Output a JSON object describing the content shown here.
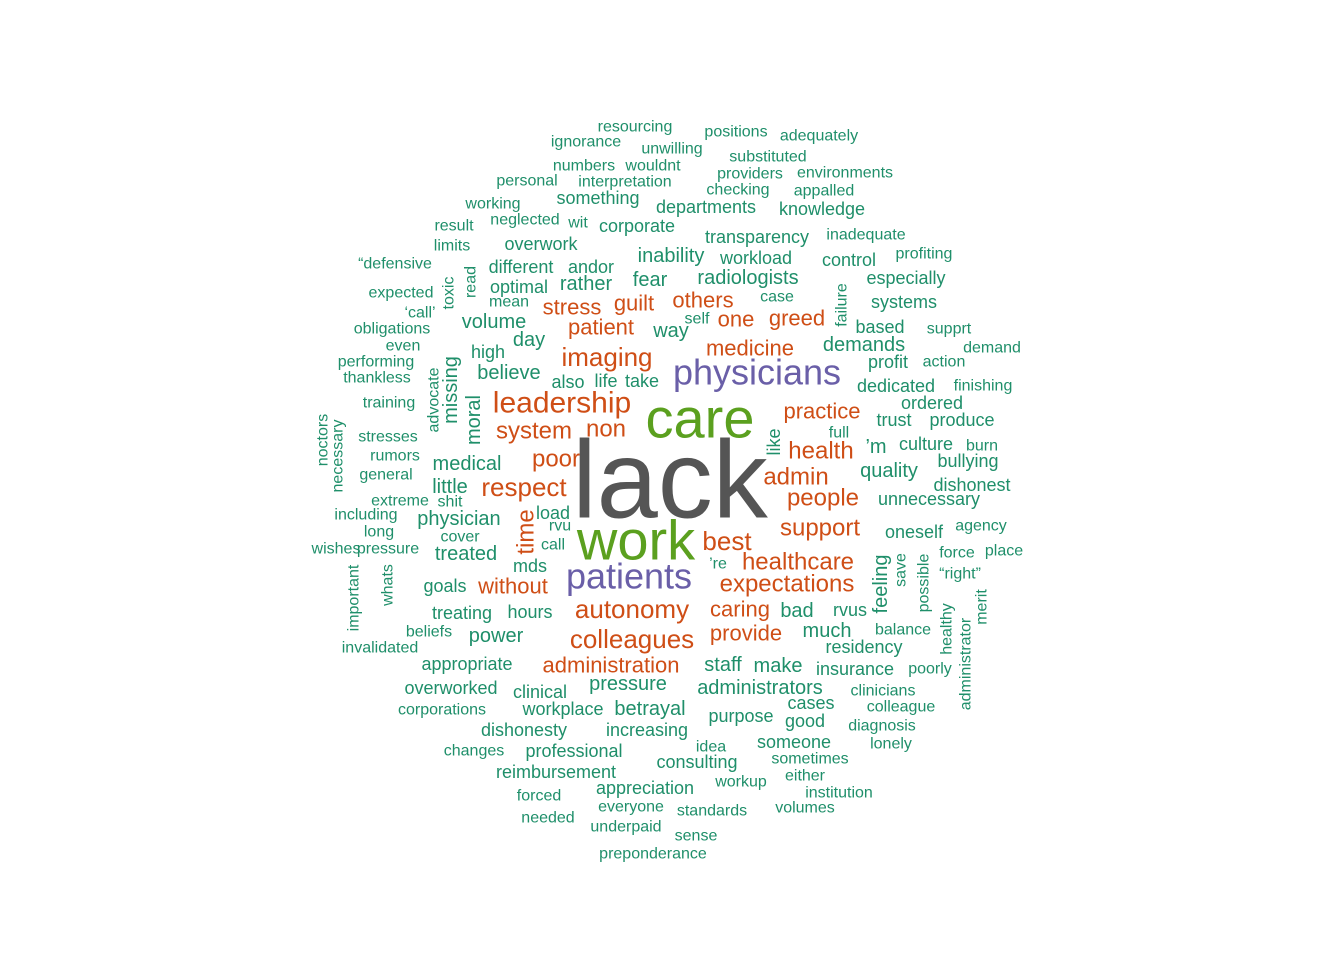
{
  "chart_data": {
    "type": "wordcloud",
    "title": "",
    "colors": {
      "level1": "#555555",
      "level2": "#5ba01f",
      "level3": "#6a5fa8",
      "level4": "#cf4e16",
      "level5": "#1f8f6a"
    },
    "words": [
      {
        "text": "lack",
        "weight": 1,
        "level": 1
      },
      {
        "text": "care",
        "weight": 0.52,
        "level": 2
      },
      {
        "text": "work",
        "weight": 0.52,
        "level": 2
      },
      {
        "text": "physicians",
        "weight": 0.42,
        "level": 3
      },
      {
        "text": "patients",
        "weight": 0.42,
        "level": 3
      },
      {
        "text": "leadership",
        "weight": 0.35,
        "level": 4
      },
      {
        "text": "autonomy",
        "weight": 0.3,
        "level": 4
      },
      {
        "text": "colleagues",
        "weight": 0.3,
        "level": 4
      },
      {
        "text": "healthcare",
        "weight": 0.3,
        "level": 4
      },
      {
        "text": "expectations",
        "weight": 0.3,
        "level": 4
      },
      {
        "text": "imaging",
        "weight": 0.3,
        "level": 4
      },
      {
        "text": "respect",
        "weight": 0.3,
        "level": 4
      },
      {
        "text": "best",
        "weight": 0.3,
        "level": 4
      },
      {
        "text": "support",
        "weight": 0.28,
        "level": 4
      },
      {
        "text": "administration",
        "weight": 0.27,
        "level": 4
      },
      {
        "text": "health",
        "weight": 0.28,
        "level": 4
      },
      {
        "text": "admin",
        "weight": 0.28,
        "level": 4
      },
      {
        "text": "people",
        "weight": 0.28,
        "level": 4
      },
      {
        "text": "practice",
        "weight": 0.26,
        "level": 4
      },
      {
        "text": "system",
        "weight": 0.27,
        "level": 4
      },
      {
        "text": "non",
        "weight": 0.28,
        "level": 4
      },
      {
        "text": "poor",
        "weight": 0.28,
        "level": 4
      },
      {
        "text": "time",
        "weight": 0.27,
        "level": 4
      },
      {
        "text": "medicine",
        "weight": 0.25,
        "level": 4
      },
      {
        "text": "patient",
        "weight": 0.26,
        "level": 4
      },
      {
        "text": "stress",
        "weight": 0.25,
        "level": 4
      },
      {
        "text": "guilt",
        "weight": 0.25,
        "level": 4
      },
      {
        "text": "others",
        "weight": 0.25,
        "level": 4
      },
      {
        "text": "one",
        "weight": 0.25,
        "level": 4
      },
      {
        "text": "greed",
        "weight": 0.25,
        "level": 4
      },
      {
        "text": "without",
        "weight": 0.25,
        "level": 4
      },
      {
        "text": "caring",
        "weight": 0.25,
        "level": 4
      },
      {
        "text": "provide",
        "weight": 0.25,
        "level": 4
      },
      {
        "text": "inability",
        "weight": 0.23,
        "level": 5
      },
      {
        "text": "radiologists",
        "weight": 0.23,
        "level": 5
      },
      {
        "text": "fear",
        "weight": 0.23,
        "level": 5
      },
      {
        "text": "demands",
        "weight": 0.23,
        "level": 5
      },
      {
        "text": "way",
        "weight": 0.23,
        "level": 5
      },
      {
        "text": "day",
        "weight": 0.23,
        "level": 5
      },
      {
        "text": "believe",
        "weight": 0.23,
        "level": 5
      },
      {
        "text": "medical",
        "weight": 0.23,
        "level": 5
      },
      {
        "text": "little",
        "weight": 0.23,
        "level": 5
      },
      {
        "text": "physician",
        "weight": 0.22,
        "level": 5
      },
      {
        "text": "treated",
        "weight": 0.22,
        "level": 5
      },
      {
        "text": "hours",
        "weight": 0.22,
        "level": 5
      },
      {
        "text": "power",
        "weight": 0.22,
        "level": 5
      },
      {
        "text": "much",
        "weight": 0.22,
        "level": 5
      },
      {
        "text": "bad",
        "weight": 0.22,
        "level": 5
      },
      {
        "text": "make",
        "weight": 0.22,
        "level": 5
      },
      {
        "text": "staff",
        "weight": 0.22,
        "level": 5
      },
      {
        "text": "pressure",
        "weight": 0.22,
        "level": 5
      },
      {
        "text": "administrators",
        "weight": 0.22,
        "level": 5
      },
      {
        "text": "betrayal",
        "weight": 0.22,
        "level": 5
      },
      {
        "text": "quality",
        "weight": 0.22,
        "level": 5
      },
      {
        "text": "feeling",
        "weight": 0.22,
        "level": 5
      },
      {
        "text": "moral",
        "weight": 0.22,
        "level": 5
      },
      {
        "text": "missing",
        "weight": 0.22,
        "level": 5
      },
      {
        "text": "volume",
        "weight": 0.21,
        "level": 5
      },
      {
        "text": "rather",
        "weight": 0.21,
        "level": 5
      },
      {
        "text": "andor",
        "weight": 0.2,
        "level": 5
      },
      {
        "text": "optimal",
        "weight": 0.2,
        "level": 5
      },
      {
        "text": "different",
        "weight": 0.2,
        "level": 5
      },
      {
        "text": "overwork",
        "weight": 0.2,
        "level": 5
      },
      {
        "text": "something",
        "weight": 0.2,
        "level": 5
      },
      {
        "text": "corporate",
        "weight": 0.2,
        "level": 5
      },
      {
        "text": "departments",
        "weight": 0.2,
        "level": 5
      },
      {
        "text": "knowledge",
        "weight": 0.2,
        "level": 5
      },
      {
        "text": "transparency",
        "weight": 0.2,
        "level": 5
      },
      {
        "text": "workload",
        "weight": 0.2,
        "level": 5
      },
      {
        "text": "control",
        "weight": 0.2,
        "level": 5
      },
      {
        "text": "especially",
        "weight": 0.2,
        "level": 5
      },
      {
        "text": "systems",
        "weight": 0.2,
        "level": 5
      },
      {
        "text": "based",
        "weight": 0.2,
        "level": 5
      },
      {
        "text": "profit",
        "weight": 0.2,
        "level": 5
      },
      {
        "text": "dedicated",
        "weight": 0.2,
        "level": 5
      },
      {
        "text": "ordered",
        "weight": 0.2,
        "level": 5
      },
      {
        "text": "trust",
        "weight": 0.2,
        "level": 5
      },
      {
        "text": "produce",
        "weight": 0.2,
        "level": 5
      },
      {
        "text": "culture",
        "weight": 0.2,
        "level": 5
      },
      {
        "text": "’m",
        "weight": 0.21,
        "level": 5
      },
      {
        "text": "bullying",
        "weight": 0.2,
        "level": 5
      },
      {
        "text": "dishonest",
        "weight": 0.2,
        "level": 5
      },
      {
        "text": "unnecessary",
        "weight": 0.2,
        "level": 5
      },
      {
        "text": "oneself",
        "weight": 0.2,
        "level": 5
      },
      {
        "text": "high",
        "weight": 0.2,
        "level": 5
      },
      {
        "text": "life",
        "weight": 0.2,
        "level": 5
      },
      {
        "text": "take",
        "weight": 0.2,
        "level": 5
      },
      {
        "text": "also",
        "weight": 0.2,
        "level": 5
      },
      {
        "text": "case",
        "weight": 0.19,
        "level": 5
      },
      {
        "text": "like",
        "weight": 0.2,
        "level": 5
      },
      {
        "text": "load",
        "weight": 0.2,
        "level": 5
      },
      {
        "text": "rvu",
        "weight": 0.2,
        "level": 5
      },
      {
        "text": "mds",
        "weight": 0.2,
        "level": 5
      },
      {
        "text": "goals",
        "weight": 0.2,
        "level": 5
      },
      {
        "text": "treating",
        "weight": 0.2,
        "level": 5
      },
      {
        "text": "appropriate",
        "weight": 0.2,
        "level": 5
      },
      {
        "text": "overworked",
        "weight": 0.2,
        "level": 5
      },
      {
        "text": "clinical",
        "weight": 0.2,
        "level": 5
      },
      {
        "text": "workplace",
        "weight": 0.2,
        "level": 5
      },
      {
        "text": "dishonesty",
        "weight": 0.2,
        "level": 5
      },
      {
        "text": "professional",
        "weight": 0.2,
        "level": 5
      },
      {
        "text": "increasing",
        "weight": 0.2,
        "level": 5
      },
      {
        "text": "purpose",
        "weight": 0.19,
        "level": 5
      },
      {
        "text": "good",
        "weight": 0.19,
        "level": 5
      },
      {
        "text": "cases",
        "weight": 0.19,
        "level": 5
      },
      {
        "text": "someone",
        "weight": 0.19,
        "level": 5
      },
      {
        "text": "consulting",
        "weight": 0.2,
        "level": 5
      },
      {
        "text": "reimbursement",
        "weight": 0.2,
        "level": 5
      },
      {
        "text": "appreciation",
        "weight": 0.2,
        "level": 5
      },
      {
        "text": "insurance",
        "weight": 0.2,
        "level": 5
      },
      {
        "text": "residency",
        "weight": 0.2,
        "level": 5
      },
      {
        "text": "rvus",
        "weight": 0.19,
        "level": 5
      },
      {
        "text": "toxic",
        "weight": 0.18,
        "level": 5
      },
      {
        "text": "read",
        "weight": 0.18,
        "level": 5
      },
      {
        "text": "failure",
        "weight": 0.18,
        "level": 5
      },
      {
        "text": "advocate",
        "weight": 0.18,
        "level": 5
      },
      {
        "text": "possible",
        "weight": 0.18,
        "level": 5
      },
      {
        "text": "resourcing",
        "weight": 0.16,
        "level": 5
      },
      {
        "text": "positions",
        "weight": 0.16,
        "level": 5
      },
      {
        "text": "adequately",
        "weight": 0.16,
        "level": 5
      },
      {
        "text": "ignorance",
        "weight": 0.16,
        "level": 5
      },
      {
        "text": "unwilling",
        "weight": 0.16,
        "level": 5
      },
      {
        "text": "substituted",
        "weight": 0.16,
        "level": 5
      },
      {
        "text": "numbers",
        "weight": 0.16,
        "level": 5
      },
      {
        "text": "wouldnt",
        "weight": 0.16,
        "level": 5
      },
      {
        "text": "providers",
        "weight": 0.16,
        "level": 5
      },
      {
        "text": "environments",
        "weight": 0.16,
        "level": 5
      },
      {
        "text": "personal",
        "weight": 0.16,
        "level": 5
      },
      {
        "text": "interpretation",
        "weight": 0.16,
        "level": 5
      },
      {
        "text": "checking",
        "weight": 0.16,
        "level": 5
      },
      {
        "text": "appalled",
        "weight": 0.16,
        "level": 5
      },
      {
        "text": "working",
        "weight": 0.16,
        "level": 5
      },
      {
        "text": "neglected",
        "weight": 0.16,
        "level": 5
      },
      {
        "text": "wit",
        "weight": 0.16,
        "level": 5
      },
      {
        "text": "result",
        "weight": 0.16,
        "level": 5
      },
      {
        "text": "limits",
        "weight": 0.16,
        "level": 5
      },
      {
        "text": "inadequate",
        "weight": 0.16,
        "level": 5
      },
      {
        "text": "profiting",
        "weight": 0.16,
        "level": 5
      },
      {
        "text": "“defensive",
        "weight": 0.16,
        "level": 5
      },
      {
        "text": "expected",
        "weight": 0.16,
        "level": 5
      },
      {
        "text": "mean",
        "weight": 0.16,
        "level": 5
      },
      {
        "text": "‘call’",
        "weight": 0.16,
        "level": 5
      },
      {
        "text": "obligations",
        "weight": 0.16,
        "level": 5
      },
      {
        "text": "even",
        "weight": 0.16,
        "level": 5
      },
      {
        "text": "self",
        "weight": 0.16,
        "level": 5
      },
      {
        "text": "supprt",
        "weight": 0.16,
        "level": 5
      },
      {
        "text": "demand",
        "weight": 0.16,
        "level": 5
      },
      {
        "text": "action",
        "weight": 0.16,
        "level": 5
      },
      {
        "text": "performing",
        "weight": 0.16,
        "level": 5
      },
      {
        "text": "thankless",
        "weight": 0.16,
        "level": 5
      },
      {
        "text": "finishing",
        "weight": 0.16,
        "level": 5
      },
      {
        "text": "training",
        "weight": 0.16,
        "level": 5
      },
      {
        "text": "full",
        "weight": 0.16,
        "level": 5
      },
      {
        "text": "burn",
        "weight": 0.16,
        "level": 5
      },
      {
        "text": "noctors",
        "weight": 0.16,
        "level": 5
      },
      {
        "text": "necessary",
        "weight": 0.16,
        "level": 5
      },
      {
        "text": "stresses",
        "weight": 0.16,
        "level": 5
      },
      {
        "text": "rumors",
        "weight": 0.16,
        "level": 5
      },
      {
        "text": "general",
        "weight": 0.16,
        "level": 5
      },
      {
        "text": "extreme",
        "weight": 0.16,
        "level": 5
      },
      {
        "text": "shit",
        "weight": 0.16,
        "level": 5
      },
      {
        "text": "including",
        "weight": 0.16,
        "level": 5
      },
      {
        "text": "long",
        "weight": 0.16,
        "level": 5
      },
      {
        "text": "cover",
        "weight": 0.16,
        "level": 5
      },
      {
        "text": "call",
        "weight": 0.16,
        "level": 5
      },
      {
        "text": "agency",
        "weight": 0.16,
        "level": 5
      },
      {
        "text": "wishes",
        "weight": 0.16,
        "level": 5
      },
      {
        "text": "pressure",
        "weight": 0.16,
        "level": 5
      },
      {
        "text": "force",
        "weight": 0.16,
        "level": 5
      },
      {
        "text": "place",
        "weight": 0.16,
        "level": 5
      },
      {
        "text": "’re",
        "weight": 0.16,
        "level": 5
      },
      {
        "text": "save",
        "weight": 0.16,
        "level": 5
      },
      {
        "text": "“right”",
        "weight": 0.16,
        "level": 5
      },
      {
        "text": "whats",
        "weight": 0.16,
        "level": 5
      },
      {
        "text": "important",
        "weight": 0.16,
        "level": 5
      },
      {
        "text": "beliefs",
        "weight": 0.16,
        "level": 5
      },
      {
        "text": "invalidated",
        "weight": 0.16,
        "level": 5
      },
      {
        "text": "balance",
        "weight": 0.16,
        "level": 5
      },
      {
        "text": "healthy",
        "weight": 0.16,
        "level": 5
      },
      {
        "text": "merit",
        "weight": 0.16,
        "level": 5
      },
      {
        "text": "administrator",
        "weight": 0.16,
        "level": 5
      },
      {
        "text": "poorly",
        "weight": 0.16,
        "level": 5
      },
      {
        "text": "clinicians",
        "weight": 0.16,
        "level": 5
      },
      {
        "text": "colleague",
        "weight": 0.16,
        "level": 5
      },
      {
        "text": "corporations",
        "weight": 0.16,
        "level": 5
      },
      {
        "text": "diagnosis",
        "weight": 0.16,
        "level": 5
      },
      {
        "text": "lonely",
        "weight": 0.16,
        "level": 5
      },
      {
        "text": "changes",
        "weight": 0.16,
        "level": 5
      },
      {
        "text": "idea",
        "weight": 0.16,
        "level": 5
      },
      {
        "text": "sometimes",
        "weight": 0.16,
        "level": 5
      },
      {
        "text": "either",
        "weight": 0.16,
        "level": 5
      },
      {
        "text": "workup",
        "weight": 0.16,
        "level": 5
      },
      {
        "text": "institution",
        "weight": 0.16,
        "level": 5
      },
      {
        "text": "forced",
        "weight": 0.16,
        "level": 5
      },
      {
        "text": "everyone",
        "weight": 0.16,
        "level": 5
      },
      {
        "text": "standards",
        "weight": 0.16,
        "level": 5
      },
      {
        "text": "volumes",
        "weight": 0.16,
        "level": 5
      },
      {
        "text": "needed",
        "weight": 0.16,
        "level": 5
      },
      {
        "text": "underpaid",
        "weight": 0.16,
        "level": 5
      },
      {
        "text": "sense",
        "weight": 0.16,
        "level": 5
      },
      {
        "text": "preponderance",
        "weight": 0.16,
        "level": 5
      }
    ]
  }
}
